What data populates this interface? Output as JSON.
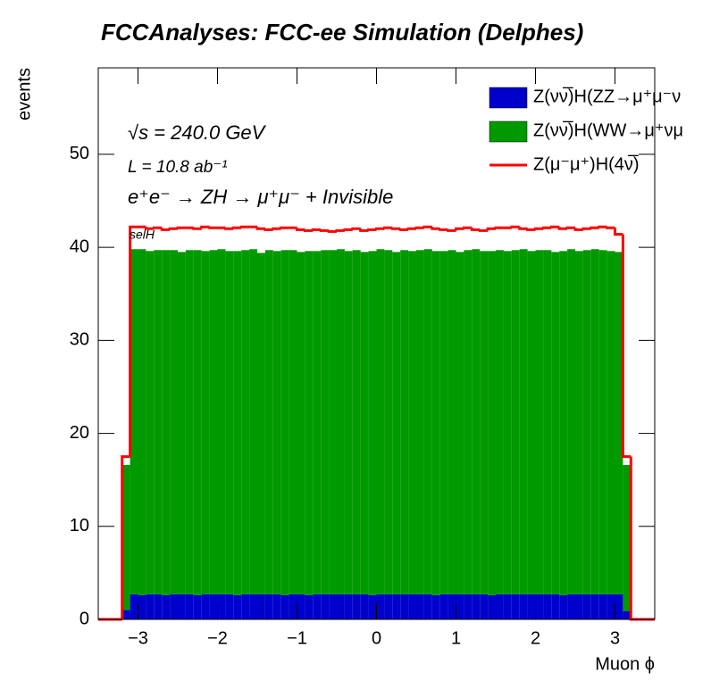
{
  "chart_data": {
    "type": "histogram",
    "title": "FCCAnalyses: FCC-ee Simulation (Delphes)",
    "xlabel": "Muon ϕ",
    "ylabel": "events",
    "annotations": [
      "√s = 240.0 GeV",
      "L = 10.8 ab⁻¹",
      "e⁺e⁻ → ZH → μ⁺μ⁻ + Invisible",
      "selH"
    ],
    "bins": [
      -3.5,
      -3.4,
      -3.3,
      -3.2,
      -3.1,
      -3.0,
      -2.9,
      -2.8,
      -2.7,
      -2.6,
      -2.5,
      -2.4,
      -2.3,
      -2.2,
      -2.1,
      -2.0,
      -1.9,
      -1.8,
      -1.7,
      -1.6,
      -1.5,
      -1.4,
      -1.3,
      -1.2,
      -1.1,
      -1.0,
      -0.9,
      -0.8,
      -0.7,
      -0.6,
      -0.5,
      -0.4,
      -0.3,
      -0.2,
      -0.1,
      0.0,
      0.1,
      0.2,
      0.3,
      0.4,
      0.5,
      0.6,
      0.7,
      0.8,
      0.9,
      1.0,
      1.1,
      1.2,
      1.3,
      1.4,
      1.5,
      1.6,
      1.7,
      1.8,
      1.9,
      2.0,
      2.1,
      2.2,
      2.3,
      2.4,
      2.5,
      2.6,
      2.7,
      2.8,
      2.9,
      3.0,
      3.1,
      3.2,
      3.3,
      3.4,
      3.5
    ],
    "series": [
      {
        "name": "Z(νν̅)H(ZZ→μ⁺μ⁻ν",
        "color": "#0000cc",
        "stacked": true,
        "values": [
          0,
          0,
          0,
          1.0,
          2.7,
          2.6,
          2.7,
          2.7,
          2.6,
          2.7,
          2.7,
          2.7,
          2.6,
          2.7,
          2.7,
          2.7,
          2.7,
          2.6,
          2.7,
          2.7,
          2.7,
          2.7,
          2.7,
          2.6,
          2.7,
          2.7,
          2.6,
          2.7,
          2.7,
          2.7,
          2.7,
          2.7,
          2.7,
          2.7,
          2.6,
          2.7,
          2.7,
          2.7,
          2.7,
          2.7,
          2.7,
          2.7,
          2.6,
          2.7,
          2.7,
          2.7,
          2.7,
          2.7,
          2.7,
          2.6,
          2.7,
          2.7,
          2.7,
          2.7,
          2.7,
          2.7,
          2.7,
          2.7,
          2.6,
          2.7,
          2.7,
          2.7,
          2.7,
          2.7,
          2.7,
          2.7,
          0.9,
          0,
          0,
          0
        ]
      },
      {
        "name": "Z(νν̅)H(WW→μ⁺νμ",
        "color": "#009900",
        "stacked": true,
        "values": [
          0,
          0,
          0,
          15.6,
          37.1,
          37.2,
          36.9,
          37.0,
          37.1,
          37.0,
          36.8,
          37.0,
          37.1,
          36.9,
          37.0,
          37.1,
          36.9,
          37.0,
          37.0,
          37.1,
          36.7,
          37.0,
          36.9,
          37.1,
          37.0,
          36.8,
          37.0,
          36.9,
          37.0,
          37.0,
          37.1,
          36.9,
          37.0,
          36.8,
          37.0,
          37.1,
          37.0,
          36.8,
          37.0,
          36.9,
          37.0,
          37.1,
          37.0,
          36.9,
          37.0,
          36.8,
          37.0,
          37.1,
          36.9,
          37.0,
          37.0,
          36.9,
          37.0,
          37.1,
          36.9,
          37.0,
          37.0,
          36.8,
          37.0,
          37.1,
          36.9,
          37.0,
          37.1,
          37.0,
          36.9,
          36.8,
          15.7,
          0,
          0,
          0
        ]
      },
      {
        "name": "Z(μ⁻μ⁺)H(4ν̅)",
        "color": "#ff0000",
        "stacked": false,
        "values": [
          0,
          0,
          0,
          17.5,
          42.2,
          42.2,
          42.0,
          42.1,
          41.9,
          42.0,
          42.1,
          42.1,
          42.0,
          42.2,
          42.1,
          42.1,
          42.0,
          42.1,
          42.2,
          42.2,
          42.0,
          41.9,
          42.0,
          42.1,
          42.1,
          41.9,
          41.8,
          41.9,
          41.8,
          41.7,
          41.8,
          41.9,
          42.0,
          41.8,
          41.9,
          42.0,
          42.1,
          42.0,
          41.9,
          42.0,
          42.1,
          42.2,
          42.0,
          41.9,
          41.8,
          42.0,
          42.1,
          41.9,
          41.8,
          42.0,
          42.1,
          42.1,
          42.2,
          42.0,
          41.9,
          42.0,
          42.1,
          42.2,
          42.0,
          42.1,
          41.9,
          42.0,
          42.1,
          42.2,
          42.1,
          41.4,
          17.5,
          0,
          0,
          0
        ]
      }
    ],
    "xlim": [
      -3.5,
      3.5
    ],
    "xticks": [
      {
        "value": -3,
        "label": "−3"
      },
      {
        "value": -2,
        "label": "−2"
      },
      {
        "value": -1,
        "label": "−1"
      },
      0,
      1,
      2,
      3
    ],
    "ylim": [
      0,
      59.3
    ],
    "yticks": [
      0,
      10,
      20,
      30,
      40,
      50
    ],
    "legend": "top-right"
  }
}
